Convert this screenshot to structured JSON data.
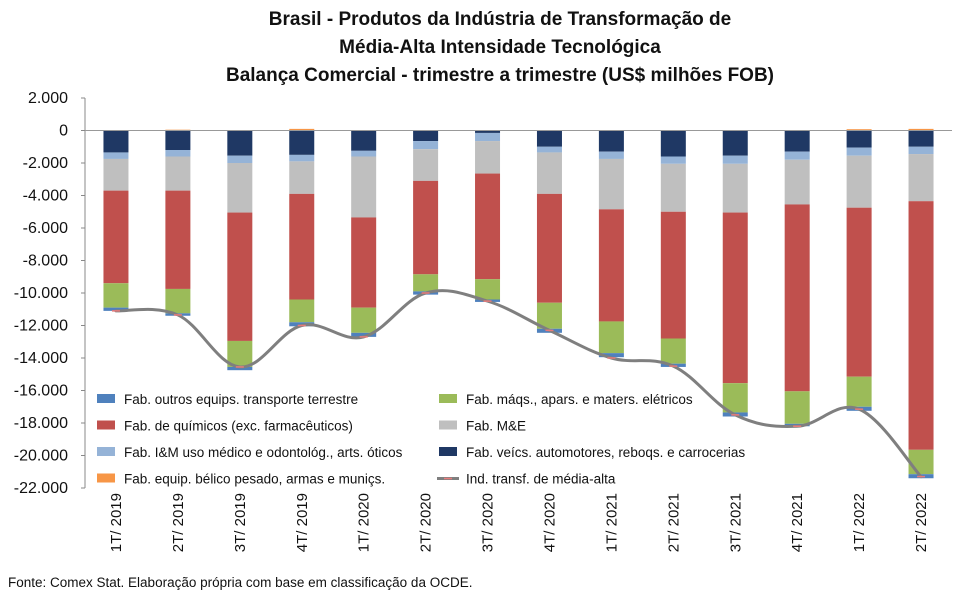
{
  "chart_data": {
    "type": "bar",
    "stacked": true,
    "title_lines": [
      "Brasil - Produtos da Indústria de Transformação de",
      "Média-Alta Intensidade Tecnológica",
      "Balança Comercial - trimestre a trimestre (US$ milhões FOB)"
    ],
    "categories": [
      "1T/ 2019",
      "2T/ 2019",
      "3T/ 2019",
      "4T/ 2019",
      "1T/ 2020",
      "2T/ 2020",
      "3T/ 2020",
      "4T/ 2020",
      "1T/ 2021",
      "2T/ 2021",
      "3T/ 2021",
      "4T/ 2021",
      "1T/ 2022",
      "2T/ 2022"
    ],
    "ylim": [
      -22000,
      2000
    ],
    "yticks": [
      2000,
      0,
      -2000,
      -4000,
      -6000,
      -8000,
      -10000,
      -12000,
      -14000,
      -16000,
      -18000,
      -20000,
      -22000
    ],
    "ytick_labels": [
      "2.000",
      "0",
      "-2.000",
      "-4.000",
      "-6.000",
      "-8.000",
      "-10.000",
      "-12.000",
      "-14.000",
      "-16.000",
      "-18.000",
      "-20.000",
      "-22.000"
    ],
    "series": [
      {
        "name": "Fab. equip. bélico pesado, armas e muniçs.",
        "color": "#f79646",
        "values": [
          0,
          50,
          0,
          100,
          0,
          0,
          0,
          0,
          0,
          0,
          0,
          0,
          80,
          100
        ]
      },
      {
        "name": "Fab. veícs. automotores, reboqs. e carrocerias",
        "color": "#1f3864",
        "values": [
          -1350,
          -1200,
          -1550,
          -1500,
          -1250,
          -650,
          -150,
          -1000,
          -1300,
          -1600,
          -1550,
          -1300,
          -1050,
          -1000
        ]
      },
      {
        "name": "Fab. I&M uso médico e odontológ., arts. óticos",
        "color": "#95b3d7",
        "values": [
          -400,
          -400,
          -450,
          -400,
          -350,
          -500,
          -500,
          -350,
          -450,
          -450,
          -500,
          -500,
          -500,
          -450
        ]
      },
      {
        "name": "Fab. M&E",
        "color": "#bfbfbf",
        "values": [
          -1950,
          -2100,
          -3050,
          -2000,
          -3750,
          -1950,
          -2000,
          -2550,
          -3100,
          -2950,
          -3000,
          -2750,
          -3200,
          -2900
        ]
      },
      {
        "name": "Fab. de químicos (exc. farmacêuticos)",
        "color": "#c0504d",
        "values": [
          -5700,
          -6050,
          -7900,
          -6500,
          -5550,
          -5750,
          -6500,
          -6700,
          -6900,
          -7800,
          -10500,
          -11500,
          -10400,
          -15300
        ]
      },
      {
        "name": "Fab. máqs., apars. e maters. elétricos",
        "color": "#9bbb59",
        "values": [
          -1500,
          -1500,
          -1600,
          -1400,
          -1550,
          -1050,
          -1250,
          -1600,
          -1950,
          -1550,
          -1800,
          -2000,
          -1850,
          -1500
        ]
      },
      {
        "name": "Fab. outros equips. transporte terrestre",
        "color": "#4f81bd",
        "values": [
          -200,
          -150,
          -200,
          -250,
          -250,
          -200,
          -150,
          -250,
          -250,
          -200,
          -250,
          -150,
          -250,
          -250
        ]
      }
    ],
    "line_series": {
      "name": "Ind. transf. de média-alta",
      "color": "#7f7f7f",
      "values": [
        -11100,
        -11350,
        -14550,
        -12000,
        -12700,
        -10000,
        -10500,
        -12300,
        -14000,
        -14500,
        -17500,
        -18200,
        -17150,
        -21300
      ]
    },
    "legend_order": [
      "Fab. outros equips. transporte terrestre",
      "Fab. máqs., apars. e maters. elétricos",
      "Fab. de químicos (exc. farmacêuticos)",
      "Fab. M&E",
      "Fab. I&M uso médico e odontológ., arts. óticos",
      "Fab. veícs. automotores, reboqs. e carrocerias",
      "Fab. equip. bélico pesado, armas e muniçs.",
      "Ind. transf. de média-alta"
    ],
    "legend_labels": [
      "Fab. outros equips. transporte terrestre",
      "Fab. máqs., apars. e maters. elétricos",
      "Fab. de químicos (exc. farmacêuticos)",
      "Fab. M&E",
      "Fab. I&M uso médico e odontológ., arts. óticos",
      "Fab. veícs. automotores, reboqs. e carrocerias",
      "Fab. equip. bélico pesado, armas e muniçs.",
      "Ind. transf. de média-alta"
    ],
    "legend_placement": "bottom-left inside plot",
    "grid": false
  },
  "source_text": "Fonte: Comex Stat. Elaboração própria com base em classificação da OCDE."
}
